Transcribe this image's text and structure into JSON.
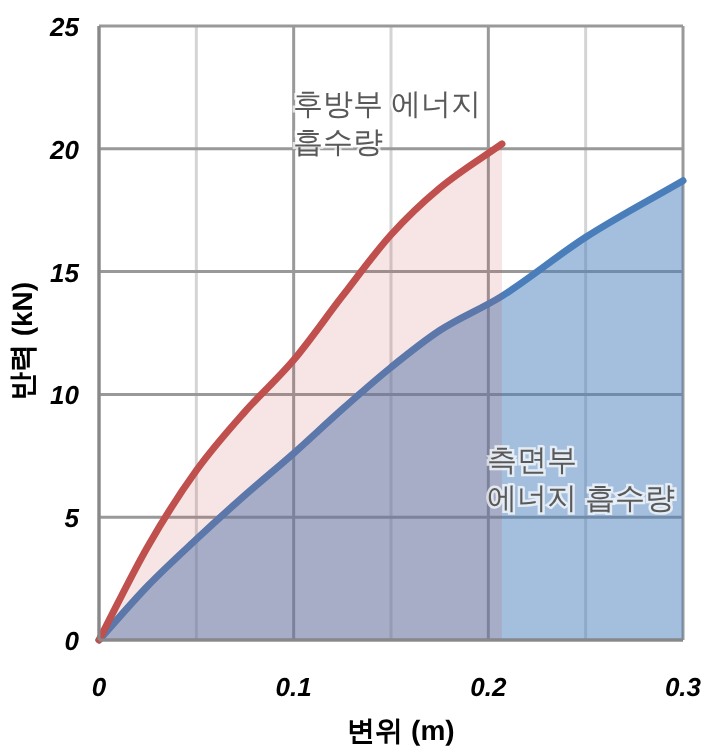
{
  "chart_data": {
    "type": "area",
    "xlabel": "변위 (m)",
    "ylabel": "반력 (kN)",
    "xlim": [
      0,
      0.3
    ],
    "xticks": [
      0,
      {
        "value": 0.05,
        "label": null
      },
      0.1,
      {
        "value": 0.15,
        "label": null
      },
      0.2,
      {
        "value": 0.25,
        "label": null
      },
      0.3
    ],
    "ylim": [
      0,
      25
    ],
    "yticks": [
      0,
      5,
      10,
      15,
      20,
      25
    ],
    "grid": true,
    "series": [
      {
        "color": "#4a7ebb",
        "x": [
          0,
          0.025,
          0.05,
          0.075,
          0.1,
          0.125,
          0.15,
          0.175,
          0.207,
          0.25,
          0.3
        ],
        "values": [
          0,
          2.2,
          4.1,
          5.9,
          7.6,
          9.4,
          11.1,
          12.6,
          14.0,
          16.4,
          18.7
        ]
      },
      {
        "color": "#c0504d",
        "x": [
          0,
          0.025,
          0.05,
          0.075,
          0.1,
          0.125,
          0.15,
          0.175,
          0.207
        ],
        "values": [
          0,
          3.8,
          6.9,
          9.3,
          11.4,
          14.0,
          16.5,
          18.4,
          20.2
        ]
      }
    ],
    "annotations": [
      "후방부 에너지\n흡수량",
      "측면부\n에너지 흡수량"
    ]
  }
}
